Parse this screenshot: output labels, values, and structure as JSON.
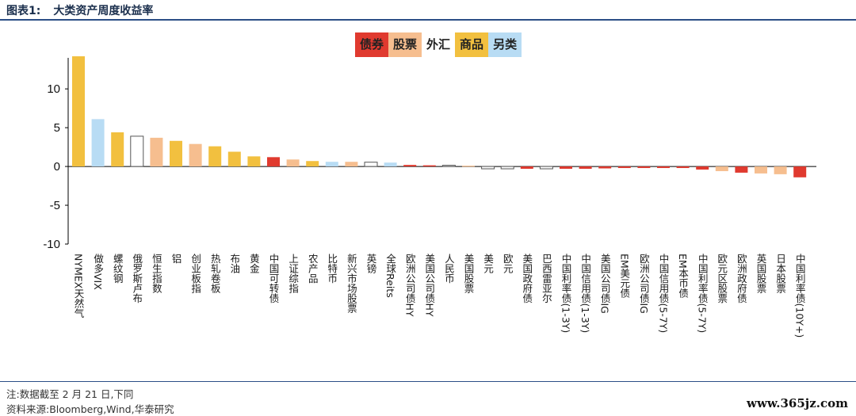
{
  "header": {
    "label": "图表1:",
    "title": "大类资产周度收益率"
  },
  "footer": {
    "note": "注:数据截至 2 月 21 日,下同",
    "source": "资料来源:Bloomberg,Wind,华泰研究"
  },
  "watermark": "www.365jz.com",
  "colors": {
    "债券": "#e03a2f",
    "股票": "#f6be8f",
    "外汇": "#ffffff",
    "商品": "#f2c03f",
    "另类": "#b8dcf4"
  },
  "chart_data": {
    "type": "bar",
    "ylim": [
      -10,
      14
    ],
    "yticks": [
      10,
      5,
      0,
      -5,
      -10
    ],
    "legend": [
      "债券",
      "股票",
      "外汇",
      "商品",
      "另类"
    ],
    "categories": [
      "NYMEX天然气",
      "做多VIX",
      "螺纹钢",
      "俄罗斯卢布",
      "恒生指数",
      "铝",
      "创业板指",
      "热轧卷板",
      "布油",
      "黄金",
      "中国可转债",
      "上证综指",
      "农产品",
      "比特币",
      "新兴市场股票",
      "英镑",
      "全球Reits",
      "欧洲公司债HY",
      "美国公司债HY",
      "人民币",
      "美国股票",
      "美元",
      "欧元",
      "美国政府债",
      "巴西雷亚尔",
      "中国利率债(1-3Y)",
      "中国信用债(1-3Y)",
      "美国公司债IG",
      "EM美元债",
      "欧洲公司债IG",
      "中国信用债(5-7Y)",
      "EM本币债",
      "中国利率债(5-7Y)",
      "欧元区股票",
      "欧洲政府债",
      "英国股票",
      "日本股票",
      "中国利率债(10Y+)"
    ],
    "values": [
      14.2,
      6.1,
      4.4,
      3.9,
      3.7,
      3.3,
      2.9,
      2.6,
      1.9,
      1.3,
      1.2,
      0.9,
      0.7,
      0.6,
      0.6,
      0.55,
      0.5,
      0.2,
      0.15,
      0.15,
      0.1,
      -0.3,
      -0.3,
      -0.3,
      -0.3,
      -0.3,
      -0.3,
      -0.25,
      -0.2,
      -0.2,
      -0.2,
      -0.2,
      -0.4,
      -0.6,
      -0.8,
      -0.9,
      -1.0,
      -1.4
    ],
    "groups": [
      "商品",
      "另类",
      "商品",
      "外汇",
      "股票",
      "商品",
      "股票",
      "商品",
      "商品",
      "商品",
      "债券",
      "股票",
      "商品",
      "另类",
      "股票",
      "外汇",
      "另类",
      "债券",
      "债券",
      "外汇",
      "股票",
      "外汇",
      "外汇",
      "债券",
      "外汇",
      "债券",
      "债券",
      "债券",
      "债券",
      "债券",
      "债券",
      "债券",
      "债券",
      "股票",
      "债券",
      "股票",
      "股票",
      "债券"
    ]
  }
}
